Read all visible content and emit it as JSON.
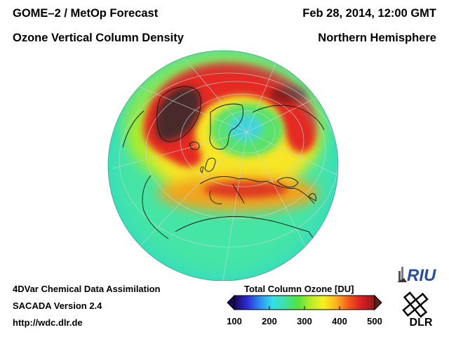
{
  "header": {
    "title_line1": "GOME–2 / MetOp Forecast",
    "title_line2": "Ozone Vertical Column Density",
    "date": "Feb 28, 2014, 12:00 GMT",
    "region": "Northern Hemisphere"
  },
  "footer": {
    "method": "4DVar Chemical Data Assimilation",
    "version": "SACADA Version 2.4",
    "url": "http://wdc.dlr.de"
  },
  "colorbar": {
    "title": "Total Column Ozone [DU]",
    "unit": "DU",
    "min": 100,
    "max": 500,
    "ticks": [
      {
        "value": 100,
        "label": "100"
      },
      {
        "value": 200,
        "label": "200"
      },
      {
        "value": 300,
        "label": "300"
      },
      {
        "value": 400,
        "label": "400"
      },
      {
        "value": 500,
        "label": "500"
      }
    ],
    "colors": [
      "#1a0a55",
      "#2a2bd6",
      "#2f8cf0",
      "#33e0e8",
      "#3ee1a2",
      "#55e23b",
      "#b7ec2a",
      "#f8f020",
      "#fbb21e",
      "#f3561d",
      "#d91f23",
      "#8f1a1a"
    ]
  },
  "map": {
    "projection": "orthographic",
    "hemisphere": "Northern",
    "ocean_fill": "#45e5a6",
    "high_ozone_color": "#d82222",
    "max_ozone_color": "#3e2a2a"
  },
  "logos": {
    "riu": "RIU",
    "dlr": "DLR"
  }
}
